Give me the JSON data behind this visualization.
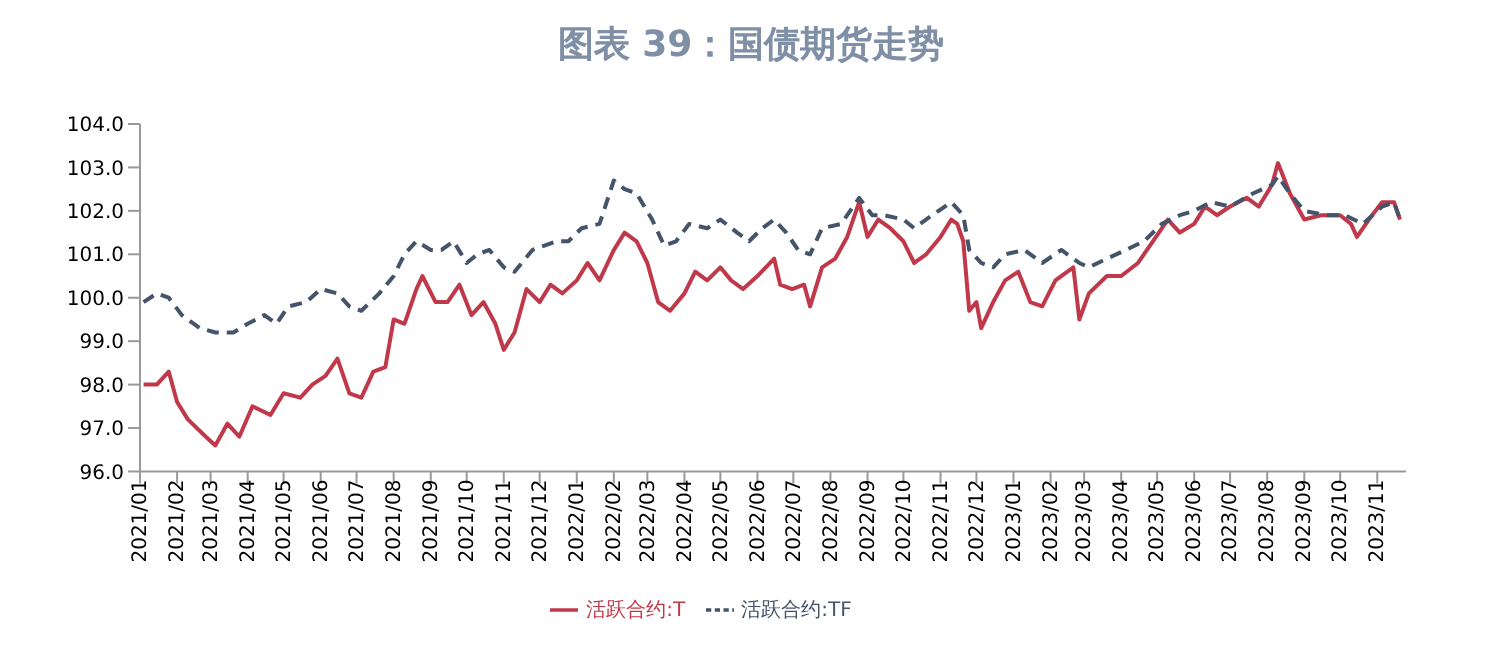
{
  "chart_data": {
    "type": "line",
    "title": "图表 39：国债期货走势",
    "xlim": [
      "2021-01-01",
      "2023-11-25"
    ],
    "ylim": [
      96,
      104
    ],
    "yticks": [
      {
        "value": 96,
        "label": "96.0"
      },
      {
        "value": 97,
        "label": "97.0"
      },
      {
        "value": 98,
        "label": "98.0"
      },
      {
        "value": 99,
        "label": "99.0"
      },
      {
        "value": 100,
        "label": "100.0"
      },
      {
        "value": 101,
        "label": "101.0"
      },
      {
        "value": 102,
        "label": "102.0"
      },
      {
        "value": 103,
        "label": "103.0"
      },
      {
        "value": 104,
        "label": "104.0"
      }
    ],
    "xticks": [
      {
        "value": "2021-01",
        "label": "2021/01"
      },
      {
        "value": "2021-02",
        "label": "2021/02"
      },
      {
        "value": "2021-03",
        "label": "2021/03"
      },
      {
        "value": "2021-04",
        "label": "2021/04"
      },
      {
        "value": "2021-05",
        "label": "2021/05"
      },
      {
        "value": "2021-06",
        "label": "2021/06"
      },
      {
        "value": "2021-07",
        "label": "2021/07"
      },
      {
        "value": "2021-08",
        "label": "2021/08"
      },
      {
        "value": "2021-09",
        "label": "2021/09"
      },
      {
        "value": "2021-10",
        "label": "2021/10"
      },
      {
        "value": "2021-11",
        "label": "2021/11"
      },
      {
        "value": "2021-12",
        "label": "2021/12"
      },
      {
        "value": "2022-01",
        "label": "2022/01"
      },
      {
        "value": "2022-02",
        "label": "2022/02"
      },
      {
        "value": "2022-03",
        "label": "2022/03"
      },
      {
        "value": "2022-04",
        "label": "2022/04"
      },
      {
        "value": "2022-05",
        "label": "2022/05"
      },
      {
        "value": "2022-06",
        "label": "2022/06"
      },
      {
        "value": "2022-07",
        "label": "2022/07"
      },
      {
        "value": "2022-08",
        "label": "2022/08"
      },
      {
        "value": "2022-09",
        "label": "2022/09"
      },
      {
        "value": "2022-10",
        "label": "2022/10"
      },
      {
        "value": "2022-11",
        "label": "2022/11"
      },
      {
        "value": "2022-12",
        "label": "2022/12"
      },
      {
        "value": "2023-01",
        "label": "2023/01"
      },
      {
        "value": "2023-02",
        "label": "2023/02"
      },
      {
        "value": "2023-03",
        "label": "2023/03"
      },
      {
        "value": "2023-04",
        "label": "2023/04"
      },
      {
        "value": "2023-05",
        "label": "2023/05"
      },
      {
        "value": "2023-06",
        "label": "2023/06"
      },
      {
        "value": "2023-07",
        "label": "2023/07"
      },
      {
        "value": "2023-08",
        "label": "2023/08"
      },
      {
        "value": "2023-09",
        "label": "2023/09"
      },
      {
        "value": "2023-10",
        "label": "2023/10"
      },
      {
        "value": "2023-11",
        "label": "2023/11"
      }
    ],
    "legend": "bottom",
    "marker": "none",
    "series": [
      {
        "name": "活跃合约:T",
        "color": "#c0394b",
        "line_style": "solid",
        "x": [
          "2021-01-04",
          "2021-01-15",
          "2021-01-25",
          "2021-02-01",
          "2021-02-10",
          "2021-02-25",
          "2021-03-05",
          "2021-03-15",
          "2021-03-25",
          "2021-04-05",
          "2021-04-20",
          "2021-05-01",
          "2021-05-15",
          "2021-05-25",
          "2021-06-05",
          "2021-06-15",
          "2021-06-25",
          "2021-07-05",
          "2021-07-15",
          "2021-07-25",
          "2021-08-01",
          "2021-08-10",
          "2021-08-20",
          "2021-08-25",
          "2021-09-05",
          "2021-09-15",
          "2021-09-25",
          "2021-10-05",
          "2021-10-15",
          "2021-10-25",
          "2021-11-01",
          "2021-11-10",
          "2021-11-20",
          "2021-12-01",
          "2021-12-10",
          "2021-12-20",
          "2022-01-01",
          "2022-01-10",
          "2022-01-20",
          "2022-02-01",
          "2022-02-10",
          "2022-02-20",
          "2022-03-01",
          "2022-03-10",
          "2022-03-20",
          "2022-04-01",
          "2022-04-10",
          "2022-04-20",
          "2022-05-01",
          "2022-05-10",
          "2022-05-20",
          "2022-06-01",
          "2022-06-15",
          "2022-06-20",
          "2022-06-30",
          "2022-07-10",
          "2022-07-15",
          "2022-07-25",
          "2022-08-05",
          "2022-08-15",
          "2022-08-25",
          "2022-09-01",
          "2022-09-10",
          "2022-09-20",
          "2022-10-01",
          "2022-10-10",
          "2022-10-20",
          "2022-11-01",
          "2022-11-10",
          "2022-11-15",
          "2022-11-20",
          "2022-11-25",
          "2022-12-01",
          "2022-12-05",
          "2022-12-15",
          "2022-12-25",
          "2023-01-05",
          "2023-01-15",
          "2023-01-25",
          "2023-02-05",
          "2023-02-20",
          "2023-02-25",
          "2023-03-05",
          "2023-03-20",
          "2023-04-01",
          "2023-04-15",
          "2023-04-25",
          "2023-05-10",
          "2023-05-20",
          "2023-06-01",
          "2023-06-10",
          "2023-06-20",
          "2023-07-01",
          "2023-07-15",
          "2023-07-25",
          "2023-08-05",
          "2023-08-10",
          "2023-08-20",
          "2023-09-01",
          "2023-09-15",
          "2023-10-01",
          "2023-10-10",
          "2023-10-15",
          "2023-10-25",
          "2023-11-05",
          "2023-11-15",
          "2023-11-20"
        ],
        "values": [
          98.0,
          98.0,
          98.3,
          97.6,
          97.2,
          96.8,
          96.6,
          97.1,
          96.8,
          97.5,
          97.3,
          97.8,
          97.7,
          98.0,
          98.2,
          98.6,
          97.8,
          97.7,
          98.3,
          98.4,
          99.5,
          99.4,
          100.2,
          100.5,
          99.9,
          99.9,
          100.3,
          99.6,
          99.9,
          99.4,
          98.8,
          99.2,
          100.2,
          99.9,
          100.3,
          100.1,
          100.4,
          100.8,
          100.4,
          101.1,
          101.5,
          101.3,
          100.8,
          99.9,
          99.7,
          100.1,
          100.6,
          100.4,
          100.7,
          100.4,
          100.2,
          100.5,
          100.9,
          100.3,
          100.2,
          100.3,
          99.8,
          100.7,
          100.9,
          101.4,
          102.2,
          101.4,
          101.8,
          101.6,
          101.3,
          100.8,
          101.0,
          101.4,
          101.8,
          101.7,
          101.3,
          99.7,
          99.9,
          99.3,
          99.9,
          100.4,
          100.6,
          99.9,
          99.8,
          100.4,
          100.7,
          99.5,
          100.1,
          100.5,
          100.5,
          100.8,
          101.2,
          101.8,
          101.5,
          101.7,
          102.1,
          101.9,
          102.1,
          102.3,
          102.1,
          102.6,
          103.1,
          102.4,
          101.8,
          101.9,
          101.9,
          101.7,
          101.4,
          101.8,
          102.2,
          102.2,
          101.8
        ]
      },
      {
        "name": "活跃合约:TF",
        "color": "#44546a",
        "line_style": "dashed",
        "x": [
          "2021-01-04",
          "2021-01-15",
          "2021-01-25",
          "2021-02-05",
          "2021-02-20",
          "2021-03-05",
          "2021-03-20",
          "2021-04-01",
          "2021-04-15",
          "2021-04-25",
          "2021-05-05",
          "2021-05-20",
          "2021-06-01",
          "2021-06-15",
          "2021-06-25",
          "2021-07-05",
          "2021-07-20",
          "2021-08-01",
          "2021-08-10",
          "2021-08-20",
          "2021-09-01",
          "2021-09-10",
          "2021-09-20",
          "2021-10-01",
          "2021-10-10",
          "2021-10-20",
          "2021-11-01",
          "2021-11-10",
          "2021-11-25",
          "2021-12-05",
          "2021-12-15",
          "2021-12-25",
          "2022-01-05",
          "2022-01-20",
          "2022-02-01",
          "2022-02-10",
          "2022-02-20",
          "2022-03-05",
          "2022-03-15",
          "2022-03-25",
          "2022-04-05",
          "2022-04-20",
          "2022-05-01",
          "2022-05-15",
          "2022-05-25",
          "2022-06-05",
          "2022-06-15",
          "2022-06-25",
          "2022-07-05",
          "2022-07-15",
          "2022-07-25",
          "2022-08-10",
          "2022-08-20",
          "2022-08-25",
          "2022-09-05",
          "2022-09-15",
          "2022-10-01",
          "2022-10-10",
          "2022-10-25",
          "2022-11-10",
          "2022-11-20",
          "2022-11-25",
          "2022-12-05",
          "2022-12-15",
          "2022-12-25",
          "2023-01-10",
          "2023-01-25",
          "2023-02-10",
          "2023-02-25",
          "2023-03-05",
          "2023-03-20",
          "2023-04-05",
          "2023-04-20",
          "2023-05-05",
          "2023-05-20",
          "2023-06-01",
          "2023-06-15",
          "2023-07-01",
          "2023-07-20",
          "2023-08-05",
          "2023-08-10",
          "2023-08-20",
          "2023-09-01",
          "2023-09-20",
          "2023-10-05",
          "2023-10-20",
          "2023-11-05",
          "2023-11-15",
          "2023-11-20"
        ],
        "values": [
          99.9,
          100.1,
          100.0,
          99.6,
          99.3,
          99.2,
          99.2,
          99.4,
          99.6,
          99.4,
          99.8,
          99.9,
          100.2,
          100.1,
          99.8,
          99.7,
          100.1,
          100.5,
          101.0,
          101.3,
          101.1,
          101.1,
          101.3,
          100.8,
          101.0,
          101.1,
          100.7,
          100.6,
          101.1,
          101.2,
          101.3,
          101.3,
          101.6,
          101.7,
          102.7,
          102.5,
          102.4,
          101.8,
          101.2,
          101.3,
          101.7,
          101.6,
          101.8,
          101.5,
          101.3,
          101.6,
          101.8,
          101.5,
          101.1,
          101.0,
          101.6,
          101.7,
          102.1,
          102.3,
          101.9,
          101.9,
          101.8,
          101.6,
          101.9,
          102.2,
          101.9,
          101.1,
          100.8,
          100.7,
          101.0,
          101.1,
          100.8,
          101.1,
          100.8,
          100.7,
          100.9,
          101.1,
          101.3,
          101.7,
          101.9,
          102.0,
          102.2,
          102.1,
          102.4,
          102.6,
          102.8,
          102.4,
          102.0,
          101.9,
          101.9,
          101.7,
          102.1,
          102.2,
          101.8
        ]
      }
    ]
  }
}
